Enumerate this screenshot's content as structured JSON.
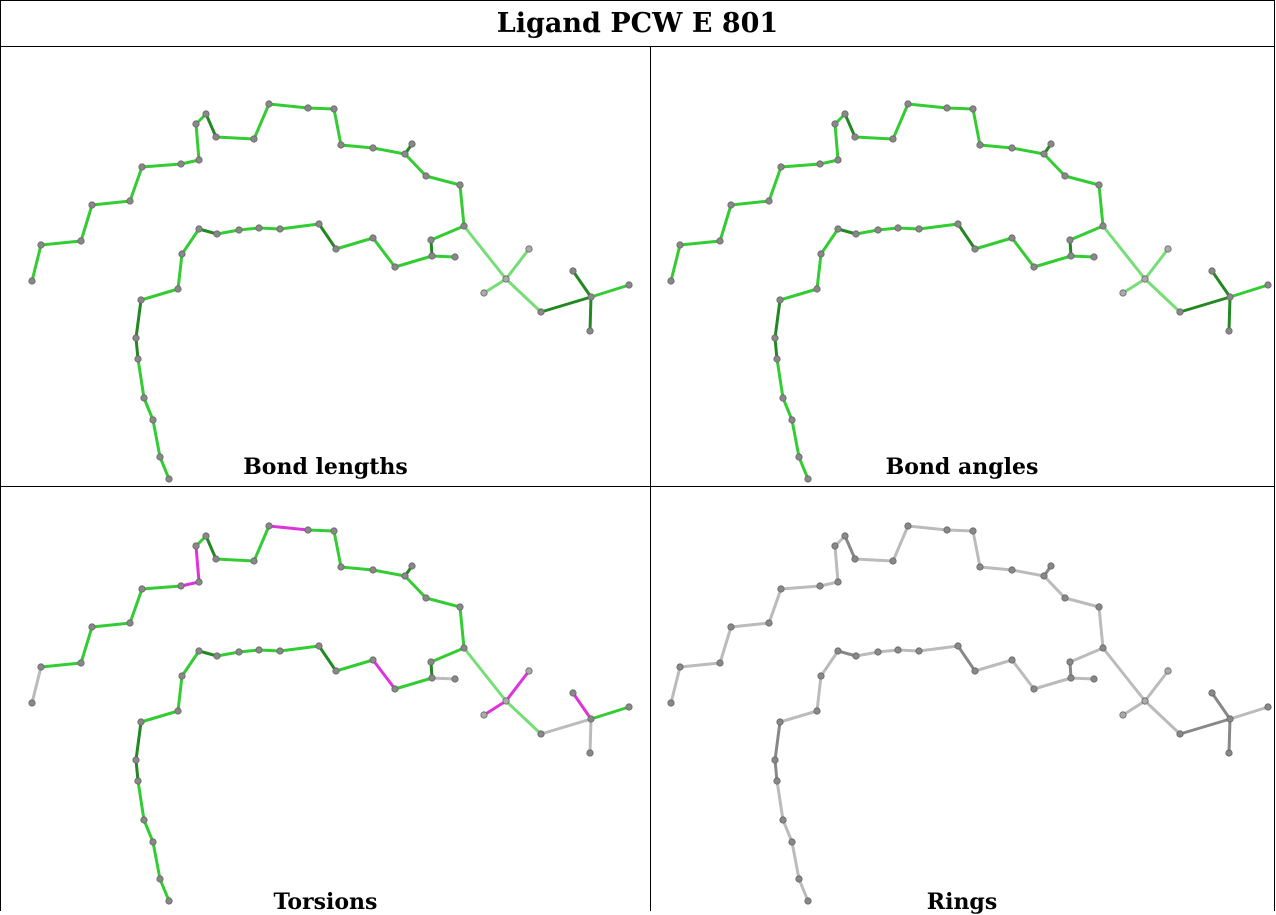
{
  "title": "Ligand PCW E 801",
  "panels": [
    {
      "caption": "Bond lengths"
    },
    {
      "caption": "Bond angles"
    },
    {
      "caption": "Torsions"
    },
    {
      "caption": "Rings"
    }
  ],
  "colors": {
    "good_bond": "#33cc33",
    "dark_bond": "#228822",
    "light_bond": "#77dd77",
    "outlier_bond": "#dd33dd",
    "neutral_bond": "#bbbbbb",
    "dark_neutral_bond": "#888888",
    "atom": "#888888"
  }
}
